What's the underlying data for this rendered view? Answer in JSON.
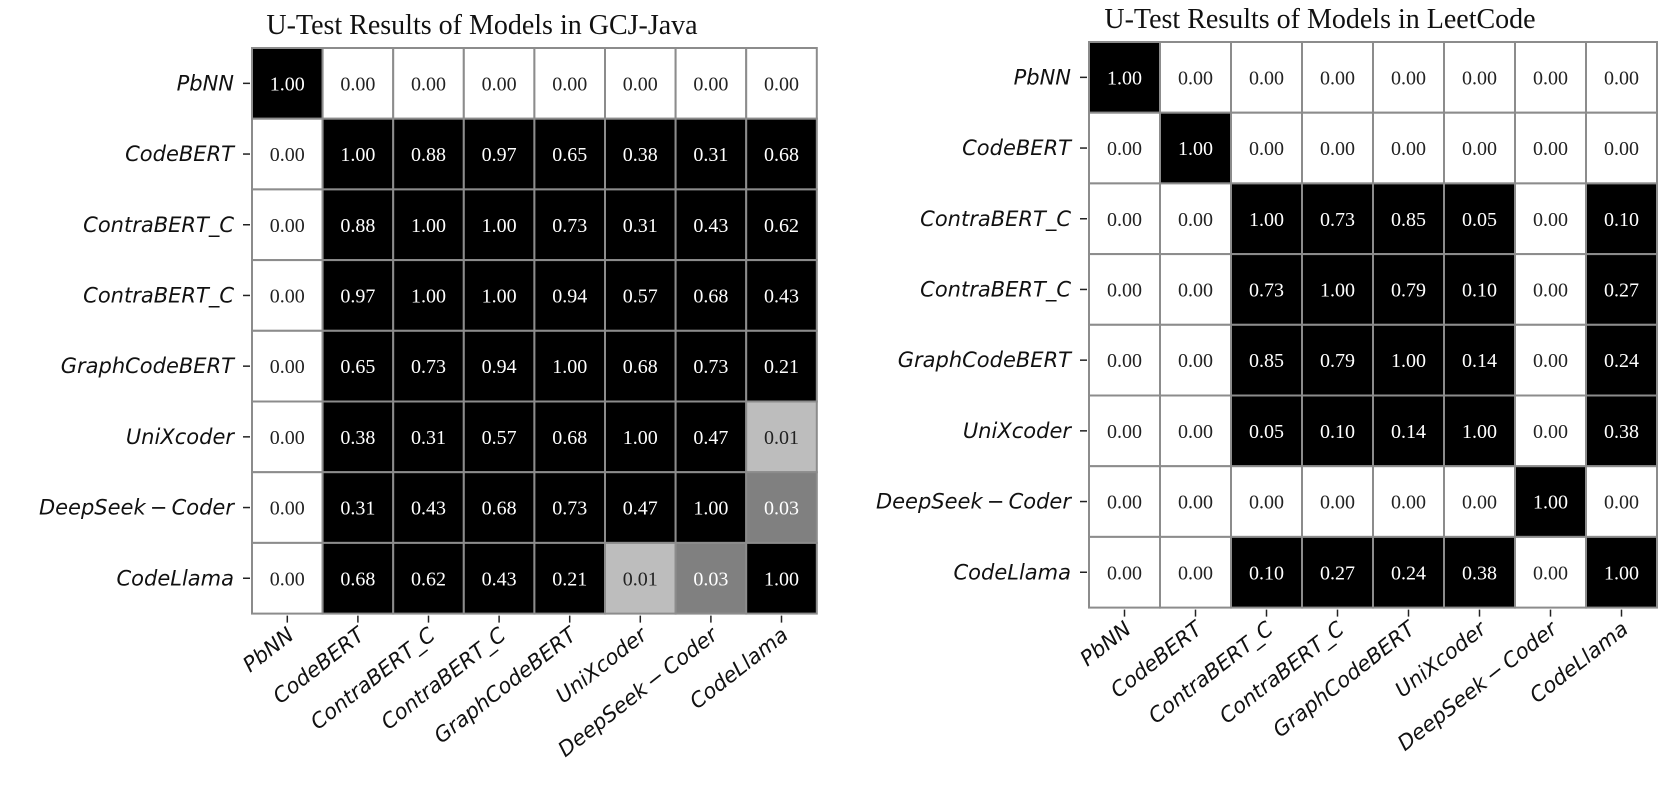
{
  "chart_data": [
    {
      "type": "heatmap",
      "title": "U-Test Results of Models in GCJ-Java",
      "rows": [
        "PbNN",
        "CodeBERT",
        "ContraBERT_C",
        "ContraBERT_C",
        "GraphCodeBERT",
        "UniXcoder",
        "DeepSeek − Coder",
        "CodeLlama"
      ],
      "columns": [
        "PbNN",
        "CodeBERT",
        "ContraBERT_C",
        "ContraBERT_C",
        "GraphCodeBERT",
        "UniXcoder",
        "DeepSeek − Coder",
        "CodeLlama"
      ],
      "values": [
        [
          1.0,
          0.0,
          0.0,
          0.0,
          0.0,
          0.0,
          0.0,
          0.0
        ],
        [
          0.0,
          1.0,
          0.88,
          0.97,
          0.65,
          0.38,
          0.31,
          0.68
        ],
        [
          0.0,
          0.88,
          1.0,
          1.0,
          0.73,
          0.31,
          0.43,
          0.62
        ],
        [
          0.0,
          0.97,
          1.0,
          1.0,
          0.94,
          0.57,
          0.68,
          0.43
        ],
        [
          0.0,
          0.65,
          0.73,
          0.94,
          1.0,
          0.68,
          0.73,
          0.21
        ],
        [
          0.0,
          0.38,
          0.31,
          0.57,
          0.68,
          1.0,
          0.47,
          0.01
        ],
        [
          0.0,
          0.31,
          0.43,
          0.68,
          0.73,
          0.47,
          1.0,
          0.03
        ],
        [
          0.0,
          0.68,
          0.62,
          0.43,
          0.21,
          0.01,
          0.03,
          1.0
        ]
      ],
      "colorscale": "white (0.00) → light gray (0.01) → mid gray (0.03) → black (≥0.05)",
      "grid": true,
      "legend": "none"
    },
    {
      "type": "heatmap",
      "title": "U-Test Results of Models in LeetCode",
      "rows": [
        "PbNN",
        "CodeBERT",
        "ContraBERT_C",
        "ContraBERT_C",
        "GraphCodeBERT",
        "UniXcoder",
        "DeepSeek − Coder",
        "CodeLlama"
      ],
      "columns": [
        "PbNN",
        "CodeBERT",
        "ContraBERT_C",
        "ContraBERT_C",
        "GraphCodeBERT",
        "UniXcoder",
        "DeepSeek − Coder",
        "CodeLlama"
      ],
      "values": [
        [
          1.0,
          0.0,
          0.0,
          0.0,
          0.0,
          0.0,
          0.0,
          0.0
        ],
        [
          0.0,
          1.0,
          0.0,
          0.0,
          0.0,
          0.0,
          0.0,
          0.0
        ],
        [
          0.0,
          0.0,
          1.0,
          0.73,
          0.85,
          0.05,
          0.0,
          0.1
        ],
        [
          0.0,
          0.0,
          0.73,
          1.0,
          0.79,
          0.1,
          0.0,
          0.27
        ],
        [
          0.0,
          0.0,
          0.85,
          0.79,
          1.0,
          0.14,
          0.0,
          0.24
        ],
        [
          0.0,
          0.0,
          0.05,
          0.1,
          0.14,
          1.0,
          0.0,
          0.38
        ],
        [
          0.0,
          0.0,
          0.0,
          0.0,
          0.0,
          0.0,
          1.0,
          0.0
        ],
        [
          0.0,
          0.0,
          0.1,
          0.27,
          0.24,
          0.38,
          0.0,
          1.0
        ]
      ],
      "colorscale": "white (0.00) → light gray (0.01) → mid gray (0.03) → black (≥0.05)",
      "grid": true,
      "legend": "none"
    }
  ],
  "colors": {
    "zero": "#ffffff",
    "low_01": "#bdbdbd",
    "low_03": "#808080",
    "high": "#000000",
    "cell_border": "#8c8c8c",
    "text_dark": "#222222",
    "text_light": "#ffffff"
  }
}
